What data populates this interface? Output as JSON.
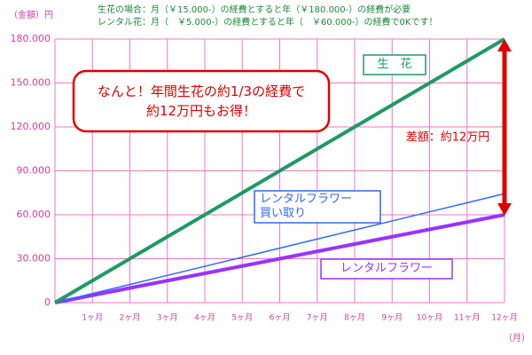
{
  "chart_data": {
    "type": "line",
    "header_lines": [
      "生花の場合：月（￥15.000-）の経費とすると年（￥180.000-）の経費が必要",
      "レンタル花：月（　￥5.000-）の経費とすると年（　￥60.000-）の経費で0Kです！"
    ],
    "ylabel": "（金額）円",
    "xlabel": "（月）",
    "categories": [
      null,
      "1ヶ月",
      "2ヶ月",
      "3ヶ月",
      "4ヶ月",
      "5ヶ月",
      "6ヶ月",
      "7ヶ月",
      "8ヶ月",
      "9ヶ月",
      "10ヶ月",
      "11ヶ月",
      "12ヶ月"
    ],
    "series": [
      {
        "name": "生　花",
        "color": "#1f9a63",
        "width": 4,
        "values": [
          0,
          15000,
          30000,
          45000,
          60000,
          75000,
          90000,
          105000,
          120000,
          135000,
          150000,
          165000,
          180000
        ]
      },
      {
        "name": "レンタルフラワー\n買い取り",
        "color": "#3366ff",
        "width": 1.5,
        "values": [
          0,
          6200,
          12400,
          18600,
          24800,
          31000,
          37200,
          43400,
          49600,
          55800,
          62000,
          68200,
          74400
        ]
      },
      {
        "name": "レンタルフラワー",
        "color": "#9933ff",
        "width": 4,
        "values": [
          0,
          5000,
          10000,
          15000,
          20000,
          25000,
          30000,
          35000,
          40000,
          45000,
          50000,
          55000,
          60000
        ]
      }
    ],
    "ylim": [
      0,
      180000
    ],
    "yticks": [
      0,
      {
        "value": 30000,
        "label": "30.000"
      },
      {
        "value": 60000,
        "label": "60.000"
      },
      {
        "value": 90000,
        "label": "90.000"
      },
      {
        "value": 120000,
        "label": "120.000"
      },
      {
        "value": 150000,
        "label": "150.000"
      },
      {
        "value": 180000,
        "label": "180.000"
      }
    ],
    "grid": true,
    "annotations": {
      "savings_note": "なんと！年間生花の約1/3の経費で\n約12万円もお得！",
      "difference": "差額：約12万円"
    }
  }
}
